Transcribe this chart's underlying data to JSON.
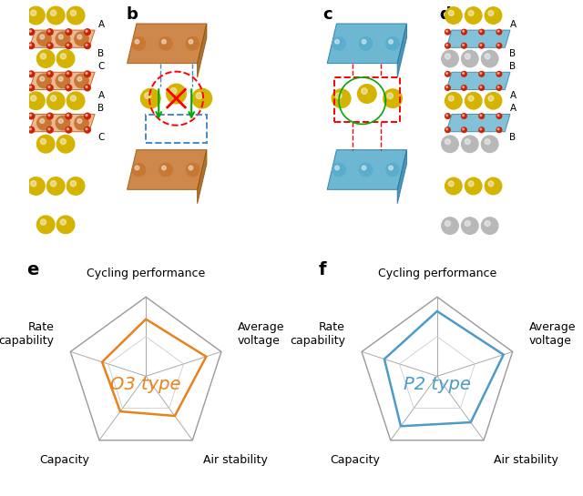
{
  "fig_width": 6.4,
  "fig_height": 5.45,
  "background_color": "#ffffff",
  "radar_e": {
    "label": "e",
    "categories": [
      "Cycling performance",
      "Average\nvoltage",
      "Air stability",
      "Capacity",
      "Rate\ncapability"
    ],
    "outer_values": [
      1.0,
      1.0,
      1.0,
      1.0,
      1.0
    ],
    "inner_values": [
      0.72,
      0.8,
      0.62,
      0.55,
      0.58
    ],
    "color": "#E8821A",
    "type_label": "O3 type",
    "type_color": "#E8821A"
  },
  "radar_f": {
    "label": "f",
    "categories": [
      "Cycling performance",
      "Average\nvoltage",
      "Air stability",
      "Capacity",
      "Rate\ncapability"
    ],
    "outer_values": [
      1.0,
      1.0,
      1.0,
      1.0,
      1.0
    ],
    "inner_values": [
      0.82,
      0.88,
      0.72,
      0.78,
      0.7
    ],
    "color": "#4D9BC7",
    "type_label": "P2 type",
    "type_color": "#4D9BC7"
  },
  "outer_polygon_color": "#999999",
  "grid_color": "#c0c0c0",
  "label_fontsize": 14,
  "category_fontsize": 9,
  "type_label_fontsize": 14
}
